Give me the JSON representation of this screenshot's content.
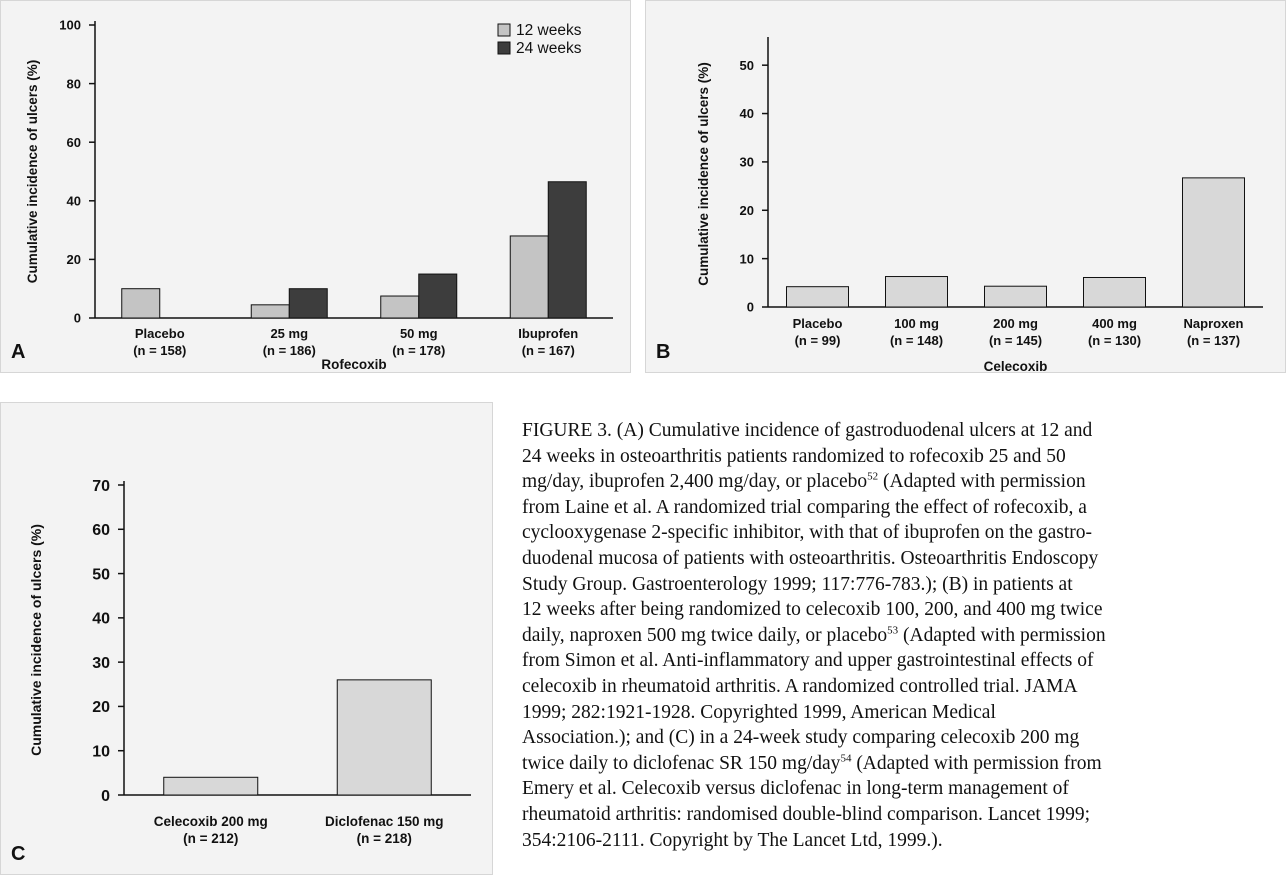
{
  "chart_data": [
    {
      "panel": "A",
      "type": "bar",
      "ylabel": "Cumulative incidence of ulcers (%)",
      "xlabel": "Rofecoxib",
      "ylim": [
        0,
        100
      ],
      "yticks": [
        0,
        20,
        40,
        60,
        80,
        100
      ],
      "categories": [
        {
          "name": "Placebo",
          "n": "(n = 158)"
        },
        {
          "name": "25 mg",
          "n": "(n = 186)"
        },
        {
          "name": "50 mg",
          "n": "(n = 178)"
        },
        {
          "name": "Ibuprofen",
          "n": "(n = 167)"
        }
      ],
      "series": [
        {
          "name": "12 weeks",
          "color": "#c4c4c4",
          "values": [
            10,
            4.5,
            7.5,
            28
          ]
        },
        {
          "name": "24 weeks",
          "color": "#3d3d3d",
          "values": [
            null,
            10,
            15,
            46.5
          ]
        }
      ],
      "legend": "top-right",
      "grid": false
    },
    {
      "panel": "B",
      "type": "bar",
      "ylabel": "Cumulative incidence of ulcers (%)",
      "xlabel": "Celecoxib",
      "ylim": [
        0,
        55
      ],
      "yticks": [
        0,
        10,
        20,
        30,
        40,
        50
      ],
      "categories": [
        {
          "name": "Placebo",
          "n": "(n = 99)"
        },
        {
          "name": "100 mg",
          "n": "(n = 148)"
        },
        {
          "name": "200 mg",
          "n": "(n = 145)"
        },
        {
          "name": "400 mg",
          "n": "(n = 130)"
        },
        {
          "name": "Naproxen",
          "n": "(n = 137)"
        }
      ],
      "series": [
        {
          "color": "#d8d8d8",
          "values": [
            4.2,
            6.3,
            4.3,
            6.1,
            26.7
          ]
        }
      ],
      "grid": false
    },
    {
      "panel": "C",
      "type": "bar",
      "ylabel": "Cumulative incidence of ulcers (%)",
      "xlabel": "",
      "ylim": [
        0,
        70
      ],
      "yticks": [
        0,
        10,
        20,
        30,
        40,
        50,
        60,
        70
      ],
      "categories": [
        {
          "name": "Celecoxib 200 mg",
          "n": "(n = 212)"
        },
        {
          "name": "Diclofenac 150 mg",
          "n": "(n = 218)"
        }
      ],
      "series": [
        {
          "color": "#d8d8d8",
          "values": [
            4,
            26
          ]
        }
      ],
      "grid": false
    }
  ],
  "caption": {
    "lines": [
      "FIGURE 3. (A) Cumulative incidence of gastroduodenal ulcers at 12 and",
      "24 weeks in osteoarthritis patients randomized to rofecoxib 25 and 50",
      "mg/day, ibuprofen 2,400 mg/day, or placebo",
      " (Adapted with permission",
      "from Laine et al. A randomized trial comparing the effect of rofecoxib, a",
      "cyclooxygenase 2-specific inhibitor, with that of ibuprofen on the gastro-",
      "duodenal mucosa of patients with osteoarthritis. Osteoarthritis Endoscopy",
      "Study Group. Gastroenterology 1999; 117:776-783.); (B) in patients at",
      "12 weeks after being randomized to celecoxib 100, 200, and 400 mg twice",
      "daily, naproxen 500 mg twice daily, or placebo",
      " (Adapted with permission",
      "from Simon et al. Anti-inflammatory and upper gastrointestinal effects of",
      "celecoxib in rheumatoid arthritis. A randomized controlled trial. JAMA",
      "1999; 282:1921-1928. Copyrighted 1999, American Medical",
      "Association.); and (C) in a 24-week study comparing celecoxib 200 mg",
      "twice daily to diclofenac SR 150 mg/day",
      " (Adapted with permission from",
      "Emery et al. Celecoxib versus diclofenac in long-term management of",
      "rheumatoid arthritis: randomised double-blind comparison. Lancet 1999;",
      "354:2106-2111. Copyright by The Lancet Ltd, 1999.)."
    ],
    "refs": [
      "52",
      "53",
      "54"
    ]
  }
}
